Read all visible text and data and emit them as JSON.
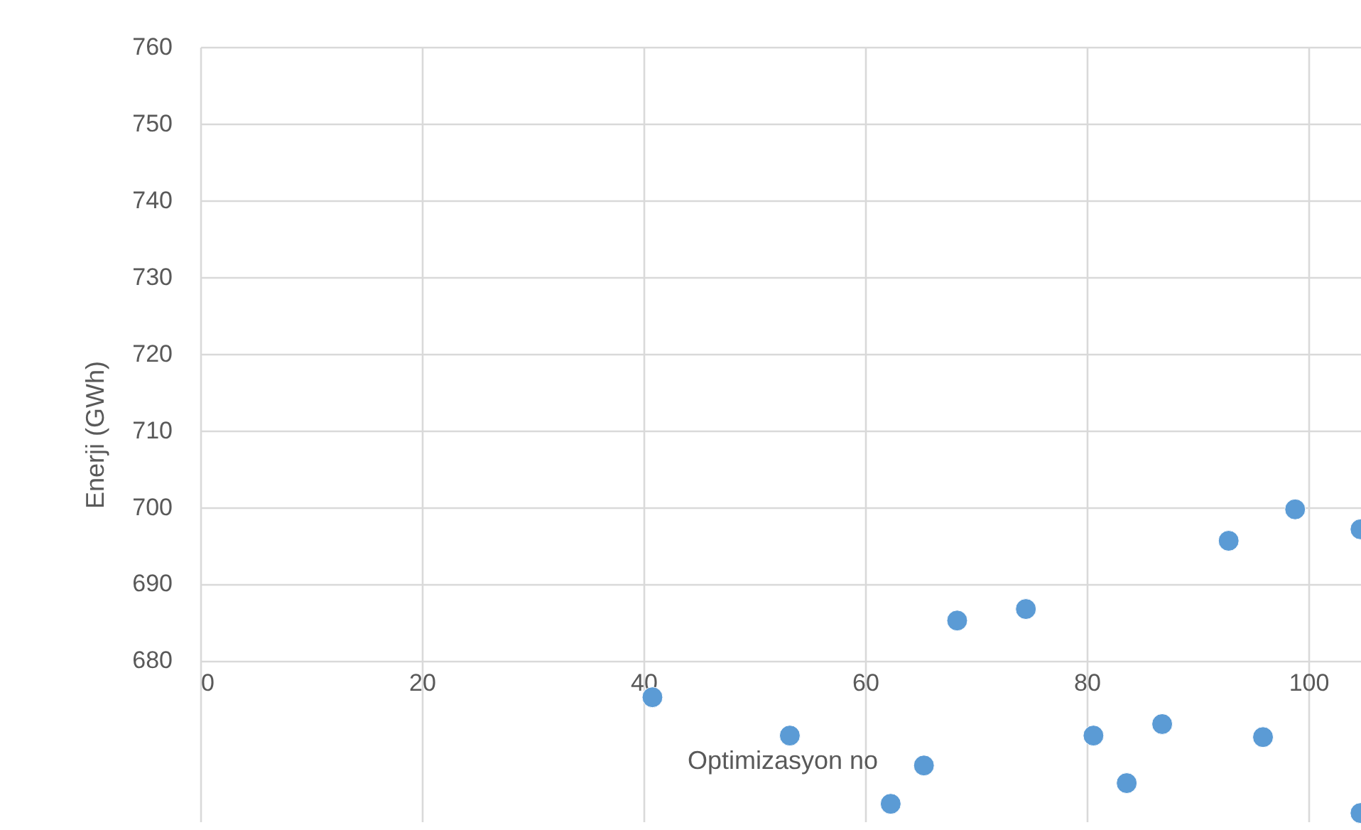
{
  "chart_data": {
    "type": "scatter",
    "xlabel": "Optimizasyon no",
    "ylabel": "Enerji (GWh)",
    "xlim": [
      0,
      105
    ],
    "ylim": [
      659,
      760
    ],
    "xticks": [
      0,
      20,
      40,
      60,
      80,
      100
    ],
    "yticks": [
      680,
      690,
      700,
      710,
      720,
      730,
      740,
      750,
      760
    ],
    "grid": true,
    "marker": "circle",
    "series": [
      {
        "color": "#5b9bd5",
        "x": [
          40.8,
          53.2,
          62.3,
          65.3,
          68.3,
          74.5,
          80.6,
          83.6,
          86.8,
          92.8,
          95.9,
          98.8,
          104.7,
          104.7
        ],
        "values": [
          675.2,
          670.2,
          661.3,
          666.3,
          685.2,
          686.7,
          670.2,
          664.0,
          671.7,
          695.6,
          670.0,
          699.7,
          697.1,
          660.1
        ]
      }
    ]
  }
}
